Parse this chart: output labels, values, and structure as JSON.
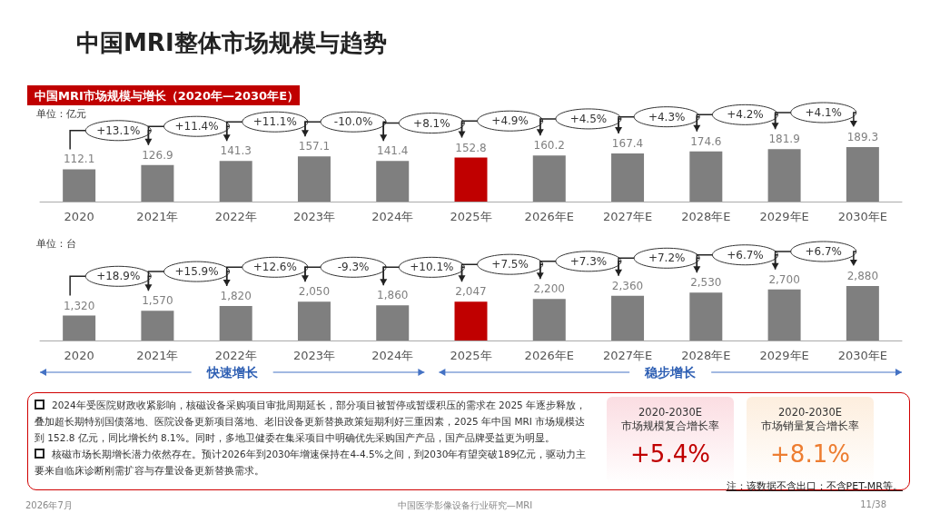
{
  "chart_data": [
    {
      "type": "bar",
      "title": "中国MRI市场规模与增长（2020年—2030年E）",
      "ylabel": "单位：亿元",
      "categories": [
        "2020",
        "2021年",
        "2022年",
        "2023年",
        "2024年",
        "2025年",
        "2026年E",
        "2027年E",
        "2028年E",
        "2029年E",
        "2030年E"
      ],
      "values": [
        112.1,
        126.9,
        141.3,
        157.1,
        141.4,
        152.8,
        160.2,
        167.4,
        174.6,
        181.9,
        189.3
      ],
      "colors": [
        "#7f7f7f",
        "#7f7f7f",
        "#7f7f7f",
        "#7f7f7f",
        "#7f7f7f",
        "#c00000",
        "#7f7f7f",
        "#7f7f7f",
        "#7f7f7f",
        "#7f7f7f",
        "#7f7f7f"
      ],
      "data_labels": true,
      "grid": false,
      "annotations": [
        "+13.1%",
        "+11.4%",
        "+11.1%",
        "-10.0%",
        "+8.1%",
        "+4.9%",
        "+4.5%",
        "+4.3%",
        "+4.2%",
        "+4.1%"
      ]
    },
    {
      "type": "bar",
      "ylabel": "单位：台",
      "categories": [
        "2020",
        "2021年",
        "2022年",
        "2023年",
        "2024年",
        "2025年",
        "2026年E",
        "2027年E",
        "2028年E",
        "2029年E",
        "2030年E"
      ],
      "values": [
        1320,
        1570,
        1820,
        2050,
        1860,
        2047,
        2200,
        2360,
        2530,
        2700,
        2880
      ],
      "value_labels": [
        "1,320",
        "1,570",
        "1,820",
        "2,050",
        "1,860",
        "2,047",
        "2,200",
        "2,360",
        "2,530",
        "2,700",
        "2,880"
      ],
      "colors": [
        "#7f7f7f",
        "#7f7f7f",
        "#7f7f7f",
        "#7f7f7f",
        "#7f7f7f",
        "#c00000",
        "#7f7f7f",
        "#7f7f7f",
        "#7f7f7f",
        "#7f7f7f",
        "#7f7f7f"
      ],
      "grid": false,
      "annotations": [
        "+18.9%",
        "+15.9%",
        "+12.6%",
        "-9.3%",
        "+10.1%",
        "+7.5%",
        "+7.3%",
        "+7.2%",
        "+6.7%",
        "+6.7%",
        "快速增长",
        "稳步增长"
      ]
    },
    {
      "type": "other",
      "title": "中国MRI整体市场规模与趋势",
      "annotations": [
        "2024年受医院财政收紧影响，核磁设备采购项目审批周期延长，部分项目被暂停或暂缓积压的需求在 2025 年逐步释放，叠加超长期特别国债落地、医院设备更新项目落地、老旧设备更新替换政策短期利好三重因素，2025 年中国 MRI 市场规模达到 152.8 亿元，同比增长约 8.1%。同时，多地卫健委在集采项目中明确优先采购国产产品，国产品牌受益更为明显。",
        "核磁市场长期增长潜力依然存在。预计2026年到2030年增速保持在4-4.5%之间，到2030年有望突破189亿元，驱动力主要来自临床诊断刚需扩容与存量设备更新替换需求。",
        "2020-2030E\n市场规模复合增长率",
        "+5.4%",
        "2020-2030E\n市场销量复合增长率",
        "+8.1%",
        "注：该数据不含出口；不含PET-MR等。",
        "2026年7月",
        "中国医学影像设备行业研究—MRI",
        "11/38"
      ]
    }
  ]
}
